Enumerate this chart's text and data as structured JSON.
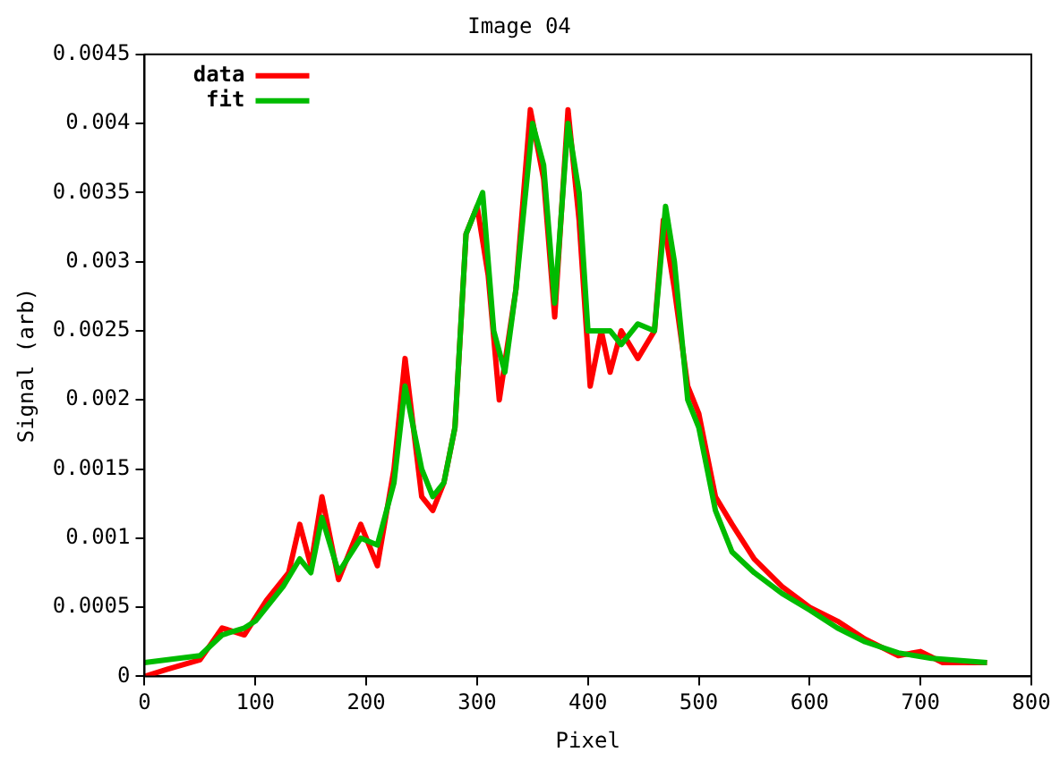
{
  "chart_data": {
    "type": "line",
    "title": "Image 04",
    "xlabel": "Pixel",
    "ylabel": "Signal (arb)",
    "xlim": [
      0,
      800
    ],
    "xticks": [
      0,
      100,
      200,
      300,
      400,
      500,
      600,
      700,
      800
    ],
    "ylim": [
      0,
      0.0045
    ],
    "yticks": [
      0,
      0.0005,
      0.001,
      0.0015,
      0.002,
      0.0025,
      0.003,
      0.0035,
      0.004,
      0.0045
    ],
    "legend": "top left",
    "grid": false,
    "marker": "none",
    "line_style": "solid",
    "series": [
      {
        "name": "data",
        "color": "#ff0000",
        "x": [
          0,
          20,
          50,
          70,
          90,
          110,
          130,
          140,
          150,
          160,
          175,
          195,
          210,
          225,
          235,
          250,
          260,
          270,
          280,
          290,
          300,
          310,
          320,
          335,
          348,
          360,
          370,
          382,
          392,
          402,
          412,
          420,
          430,
          445,
          460,
          468,
          478,
          490,
          500,
          515,
          530,
          550,
          575,
          600,
          625,
          650,
          680,
          700,
          720,
          760
        ],
        "values": [
          0,
          5e-05,
          0.00012,
          0.00035,
          0.0003,
          0.00055,
          0.00075,
          0.0011,
          0.0008,
          0.0013,
          0.0007,
          0.0011,
          0.0008,
          0.0015,
          0.0023,
          0.0013,
          0.0012,
          0.0014,
          0.0018,
          0.0032,
          0.0034,
          0.0029,
          0.002,
          0.0028,
          0.0041,
          0.0036,
          0.0026,
          0.0041,
          0.0033,
          0.0021,
          0.0025,
          0.0022,
          0.0025,
          0.0023,
          0.0025,
          0.0033,
          0.0028,
          0.0021,
          0.0019,
          0.0013,
          0.0011,
          0.00085,
          0.00065,
          0.0005,
          0.0004,
          0.00027,
          0.00015,
          0.00018,
          0.0001,
          0.0001
        ]
      },
      {
        "name": "fit",
        "color": "#00bb00",
        "x": [
          0,
          50,
          70,
          90,
          100,
          110,
          125,
          140,
          150,
          160,
          175,
          195,
          210,
          225,
          235,
          250,
          260,
          270,
          280,
          290,
          305,
          315,
          325,
          335,
          350,
          360,
          370,
          382,
          392,
          400,
          410,
          420,
          430,
          445,
          460,
          470,
          478,
          490,
          500,
          515,
          530,
          550,
          575,
          600,
          625,
          650,
          680,
          710,
          760
        ],
        "values": [
          0.0001,
          0.00015,
          0.0003,
          0.00035,
          0.0004,
          0.0005,
          0.00065,
          0.00085,
          0.00075,
          0.00115,
          0.00075,
          0.001,
          0.00095,
          0.0014,
          0.0021,
          0.0015,
          0.0013,
          0.0014,
          0.0018,
          0.0032,
          0.0035,
          0.0025,
          0.0022,
          0.0028,
          0.004,
          0.0037,
          0.0027,
          0.004,
          0.0035,
          0.0025,
          0.0025,
          0.0025,
          0.0024,
          0.00255,
          0.0025,
          0.0034,
          0.003,
          0.002,
          0.0018,
          0.0012,
          0.0009,
          0.00075,
          0.0006,
          0.00048,
          0.00035,
          0.00025,
          0.00017,
          0.00013,
          0.0001
        ]
      }
    ]
  }
}
